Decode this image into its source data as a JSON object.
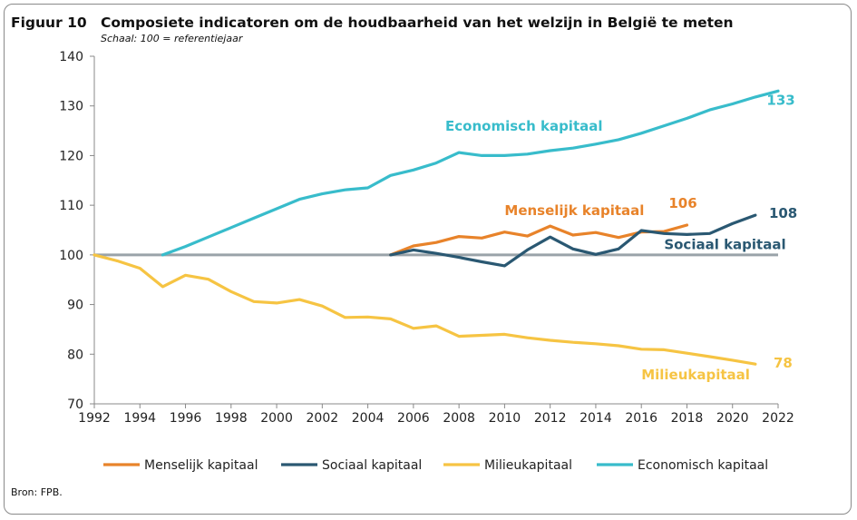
{
  "figure_label": "Figuur 10",
  "source": "Bron: FPB.",
  "colors": {
    "menselijk": "#E8832A",
    "sociaal": "#2A5872",
    "milieu": "#F6C443",
    "economisch": "#38BCCB",
    "reference": "#9AA3A9",
    "axis": "#888888"
  },
  "chart_data": {
    "type": "line",
    "title": "Composiete indicatoren om de houdbaarheid van het welzijn in België te meten",
    "subtitle": "Schaal: 100 = referentiejaar",
    "xlabel": "",
    "ylabel": "",
    "xlim": [
      1992,
      2022
    ],
    "ylim": [
      70,
      140
    ],
    "x_ticks": [
      "1992",
      "1994",
      "1996",
      "1998",
      "2000",
      "2002",
      "2004",
      "2006",
      "2008",
      "2010",
      "2012",
      "2014",
      "2016",
      "2018",
      "2020",
      "2022"
    ],
    "y_ticks": [
      "70",
      "80",
      "90",
      "100",
      "110",
      "120",
      "130",
      "140"
    ],
    "grid": false,
    "legend": "bottom",
    "reference_line": 100,
    "series": [
      {
        "key": "menselijk",
        "name": "Menselijk kapitaal",
        "x": [
          2005,
          2006,
          2007,
          2008,
          2009,
          2010,
          2011,
          2012,
          2013,
          2014,
          2015,
          2016,
          2017,
          2018
        ],
        "y": [
          100,
          101.8,
          102.5,
          103.7,
          103.4,
          104.6,
          103.8,
          105.8,
          104.0,
          104.5,
          103.5,
          104.6,
          104.7,
          106.0
        ],
        "label": "Menselijk kapitaal",
        "end_label": "106"
      },
      {
        "key": "sociaal",
        "name": "Sociaal kapitaal",
        "x": [
          2005,
          2006,
          2007,
          2008,
          2009,
          2010,
          2011,
          2012,
          2013,
          2014,
          2015,
          2016,
          2017,
          2018,
          2019,
          2020,
          2021
        ],
        "y": [
          100,
          101.0,
          100.3,
          99.5,
          98.6,
          97.8,
          101.0,
          103.6,
          101.2,
          100.1,
          101.2,
          104.9,
          104.3,
          104.1,
          104.3,
          106.3,
          108.0
        ],
        "label": "Sociaal kapitaal",
        "end_label": "108"
      },
      {
        "key": "milieu",
        "name": "Milieukapitaal",
        "x": [
          1992,
          1993,
          1994,
          1995,
          1996,
          1997,
          1998,
          1999,
          2000,
          2001,
          2002,
          2003,
          2004,
          2005,
          2006,
          2007,
          2008,
          2009,
          2010,
          2011,
          2012,
          2013,
          2014,
          2015,
          2016,
          2017,
          2018,
          2019,
          2020,
          2021
        ],
        "y": [
          100,
          98.8,
          97.3,
          93.6,
          95.9,
          95.1,
          92.6,
          90.6,
          90.3,
          91.0,
          89.7,
          87.4,
          87.5,
          87.1,
          85.2,
          85.7,
          83.6,
          83.8,
          84.0,
          83.3,
          82.8,
          82.4,
          82.1,
          81.7,
          81.0,
          80.9,
          80.2,
          79.5,
          78.8,
          78.0
        ],
        "label": "Milieukapitaal",
        "end_label": "78"
      },
      {
        "key": "economisch",
        "name": "Economisch kapitaal",
        "x": [
          1995,
          1996,
          1997,
          1998,
          1999,
          2000,
          2001,
          2002,
          2003,
          2004,
          2005,
          2006,
          2007,
          2008,
          2009,
          2010,
          2011,
          2012,
          2013,
          2014,
          2015,
          2016,
          2017,
          2018,
          2019,
          2020,
          2021,
          2022
        ],
        "y": [
          100,
          101.7,
          103.6,
          105.5,
          107.4,
          109.3,
          111.2,
          112.3,
          113.1,
          113.5,
          116.0,
          117.1,
          118.5,
          120.6,
          120.0,
          120.0,
          120.3,
          121.0,
          121.5,
          122.3,
          123.2,
          124.5,
          126.0,
          127.5,
          129.2,
          130.4,
          131.8,
          133.0
        ],
        "label": "Economisch kapitaal",
        "end_label": "133"
      }
    ]
  }
}
